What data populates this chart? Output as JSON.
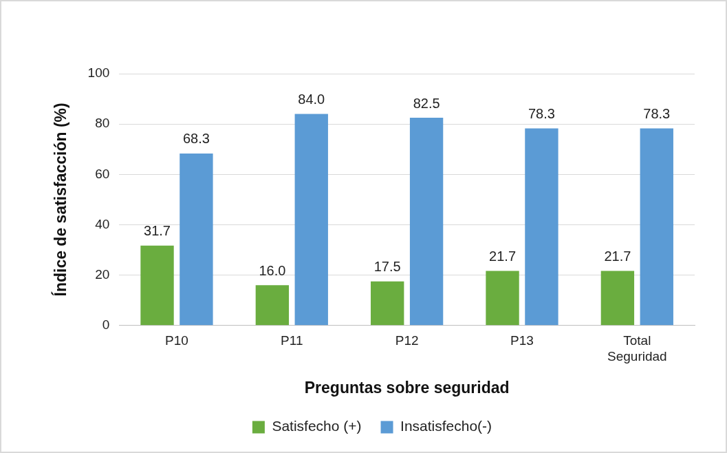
{
  "chart_data": {
    "type": "bar",
    "xlabel": "Preguntas sobre seguridad",
    "ylabel": "Índice de satisfacción (%)",
    "categories": [
      "P10",
      "P11",
      "P12",
      "P13",
      "Total Seguridad"
    ],
    "series": [
      {
        "name": "Satisfecho (+)",
        "color": "#6aad3f",
        "values": [
          31.7,
          16.0,
          17.5,
          21.7,
          21.7
        ],
        "value_labels": [
          "31.7",
          "16.0",
          "17.5",
          "21.7",
          "21.7"
        ]
      },
      {
        "name": "Insatisfecho(-)",
        "color": "#5b9bd5",
        "values": [
          68.3,
          84.0,
          82.5,
          78.3,
          78.3
        ],
        "value_labels": [
          "68.3",
          "84.0",
          "82.5",
          "78.3",
          "78.3"
        ]
      }
    ],
    "ylim": [
      0,
      100
    ],
    "yticks": [
      0,
      20,
      40,
      60,
      80,
      100
    ],
    "grid": "y",
    "legend": "bottom"
  }
}
